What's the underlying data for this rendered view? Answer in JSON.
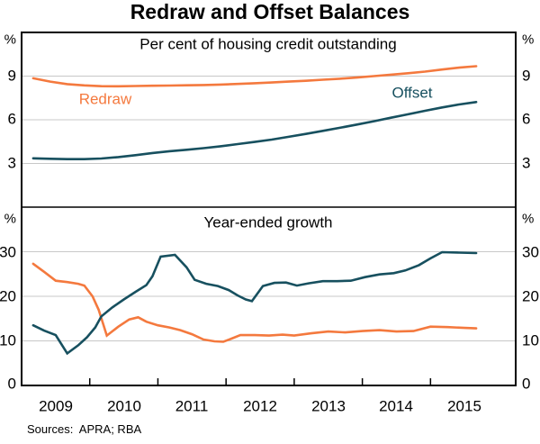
{
  "title": "Redraw and Offset Balances",
  "footer": {
    "sources": "Sources:  APRA; RBA"
  },
  "colors": {
    "redraw": "#F4793E",
    "offset": "#17505F",
    "grid": "#C8C8C8",
    "axis": "#000000",
    "background": "#FFFFFF"
  },
  "x_axis": {
    "xlim": [
      2009,
      2016.25
    ],
    "ticks": [
      2010,
      2011,
      2012,
      2013,
      2014,
      2015
    ],
    "labels": [
      "2009",
      "2010",
      "2011",
      "2012",
      "2013",
      "2014",
      "2015"
    ]
  },
  "chart_data": [
    {
      "type": "line",
      "panel": "top",
      "title": "Per cent of housing credit outstanding",
      "unit_left": "%",
      "unit_right": "%",
      "ylim": [
        0,
        12
      ],
      "yticks": [
        3,
        6,
        9
      ],
      "ytick_labels": [
        "3",
        "6",
        "9"
      ],
      "grid": true,
      "legend_position": "inline-labels",
      "series": [
        {
          "name": "Redraw",
          "color": "#F4793E",
          "x": [
            2009.17,
            2009.42,
            2009.67,
            2009.92,
            2010.17,
            2010.42,
            2010.67,
            2010.92,
            2011.17,
            2011.42,
            2011.67,
            2011.92,
            2012.17,
            2012.42,
            2012.67,
            2012.92,
            2013.17,
            2013.42,
            2013.67,
            2013.92,
            2014.17,
            2014.42,
            2014.67,
            2014.92,
            2015.17,
            2015.42,
            2015.67
          ],
          "y": [
            8.85,
            8.62,
            8.45,
            8.36,
            8.31,
            8.3,
            8.32,
            8.34,
            8.35,
            8.37,
            8.39,
            8.42,
            8.46,
            8.51,
            8.56,
            8.62,
            8.68,
            8.75,
            8.82,
            8.9,
            9.0,
            9.1,
            9.2,
            9.31,
            9.45,
            9.58,
            9.68
          ]
        },
        {
          "name": "Offset",
          "color": "#17505F",
          "x": [
            2009.17,
            2009.42,
            2009.67,
            2009.92,
            2010.17,
            2010.42,
            2010.67,
            2010.92,
            2011.17,
            2011.42,
            2011.67,
            2011.92,
            2012.17,
            2012.42,
            2012.67,
            2012.92,
            2013.17,
            2013.42,
            2013.67,
            2013.92,
            2014.17,
            2014.42,
            2014.67,
            2014.92,
            2015.17,
            2015.42,
            2015.67
          ],
          "y": [
            3.35,
            3.32,
            3.3,
            3.3,
            3.34,
            3.44,
            3.57,
            3.72,
            3.84,
            3.94,
            4.05,
            4.18,
            4.33,
            4.48,
            4.64,
            4.83,
            5.03,
            5.24,
            5.45,
            5.67,
            5.9,
            6.14,
            6.38,
            6.62,
            6.85,
            7.05,
            7.22
          ]
        }
      ]
    },
    {
      "type": "line",
      "panel": "bottom",
      "title": "Year-ended growth",
      "unit_left": "%",
      "unit_right": "%",
      "ylim": [
        0,
        40
      ],
      "yticks": [
        0,
        10,
        20,
        30
      ],
      "ytick_labels": [
        "0",
        "10",
        "20",
        "30"
      ],
      "grid": true,
      "series": [
        {
          "name": "Redraw",
          "color": "#F4793E",
          "x": [
            2009.17,
            2009.33,
            2009.5,
            2009.67,
            2009.83,
            2009.92,
            2010.04,
            2010.13,
            2010.25,
            2010.42,
            2010.58,
            2010.71,
            2010.83,
            2011.0,
            2011.17,
            2011.33,
            2011.5,
            2011.67,
            2011.83,
            2011.96,
            2012.08,
            2012.21,
            2012.42,
            2012.63,
            2012.83,
            2013.0,
            2013.25,
            2013.5,
            2013.75,
            2014.0,
            2014.25,
            2014.5,
            2014.75,
            2015.0,
            2015.25,
            2015.5,
            2015.67
          ],
          "y": [
            27.3,
            25.5,
            23.5,
            23.2,
            22.8,
            22.4,
            20.0,
            17.0,
            11.2,
            13.2,
            14.8,
            15.3,
            14.3,
            13.5,
            13.0,
            12.4,
            11.5,
            10.3,
            9.9,
            9.8,
            10.5,
            11.3,
            11.3,
            11.2,
            11.4,
            11.2,
            11.7,
            12.1,
            11.9,
            12.2,
            12.4,
            12.1,
            12.2,
            13.2,
            13.1,
            12.9,
            12.8
          ]
        },
        {
          "name": "Offset",
          "color": "#17505F",
          "x": [
            2009.17,
            2009.33,
            2009.5,
            2009.67,
            2009.83,
            2009.96,
            2010.08,
            2010.17,
            2010.33,
            2010.5,
            2010.67,
            2010.83,
            2010.92,
            2011.04,
            2011.25,
            2011.42,
            2011.54,
            2011.71,
            2011.88,
            2012.04,
            2012.17,
            2012.29,
            2012.38,
            2012.54,
            2012.71,
            2012.88,
            2013.04,
            2013.21,
            2013.42,
            2013.63,
            2013.83,
            2014.04,
            2014.25,
            2014.46,
            2014.63,
            2014.83,
            2015.0,
            2015.17,
            2015.42,
            2015.67
          ],
          "y": [
            13.5,
            12.3,
            11.3,
            7.2,
            9.0,
            10.8,
            13.0,
            15.5,
            17.5,
            19.3,
            21.0,
            22.5,
            24.5,
            28.9,
            29.3,
            26.5,
            23.7,
            22.8,
            22.3,
            21.4,
            20.2,
            19.3,
            18.9,
            22.3,
            23.0,
            23.1,
            22.4,
            22.9,
            23.4,
            23.4,
            23.5,
            24.3,
            24.9,
            25.2,
            25.8,
            27.0,
            28.5,
            29.9,
            29.8,
            29.7
          ]
        }
      ]
    }
  ]
}
